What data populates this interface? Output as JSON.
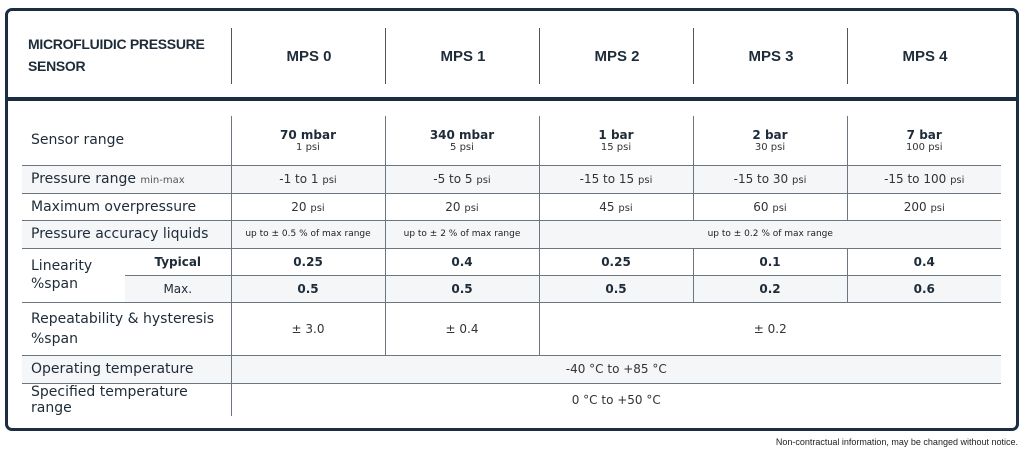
{
  "header": {
    "title": "MICROFLUIDIC PRESSURE SENSOR",
    "models": [
      "MPS 0",
      "MPS 1",
      "MPS 2",
      "MPS 3",
      "MPS 4"
    ]
  },
  "rows": {
    "sensor_range": {
      "label": "Sensor range",
      "values": [
        {
          "main": "70 mbar",
          "sub": "1 psi"
        },
        {
          "main": "340 mbar",
          "sub": "5 psi"
        },
        {
          "main": "1 bar",
          "sub": "15 psi"
        },
        {
          "main": "2 bar",
          "sub": "30 psi"
        },
        {
          "main": "7 bar",
          "sub": "100 psi"
        }
      ]
    },
    "pressure_range": {
      "label": "Pressure range",
      "qualifier": "min-max",
      "unit": "psi",
      "values": [
        "-1 to 1",
        "-5 to 5",
        "-15 to 15",
        "-15 to 30",
        "-15 to 100"
      ]
    },
    "overpressure": {
      "label": "Maximum overpressure",
      "unit": "psi",
      "values": [
        "20",
        "20",
        "45",
        "60",
        "200"
      ]
    },
    "accuracy": {
      "label": "Pressure accuracy liquids",
      "values": [
        "up to ± 0.5 % of max range",
        "up to ± 2 % of max range",
        "up to ± 0.2 % of max range"
      ]
    },
    "linearity": {
      "label": "Linearity %span",
      "typical_label": "Typical",
      "max_label": "Max.",
      "typical": [
        "0.25",
        "0.4",
        "0.25",
        "0.1",
        "0.4"
      ],
      "max": [
        "0.5",
        "0.5",
        "0.5",
        "0.2",
        "0.6"
      ]
    },
    "repeatability": {
      "label": "Repeatability & hysteresis %span",
      "values": [
        "± 3.0",
        "± 0.4",
        "± 0.2"
      ]
    },
    "operating_temp": {
      "label": "Operating temperature",
      "value": "-40 °C to +85 °C"
    },
    "specified_temp": {
      "label": "Specified temperature range",
      "value": "0 °C to +50 °C"
    }
  },
  "footnote": "Non-contractual information, may be changed without notice."
}
